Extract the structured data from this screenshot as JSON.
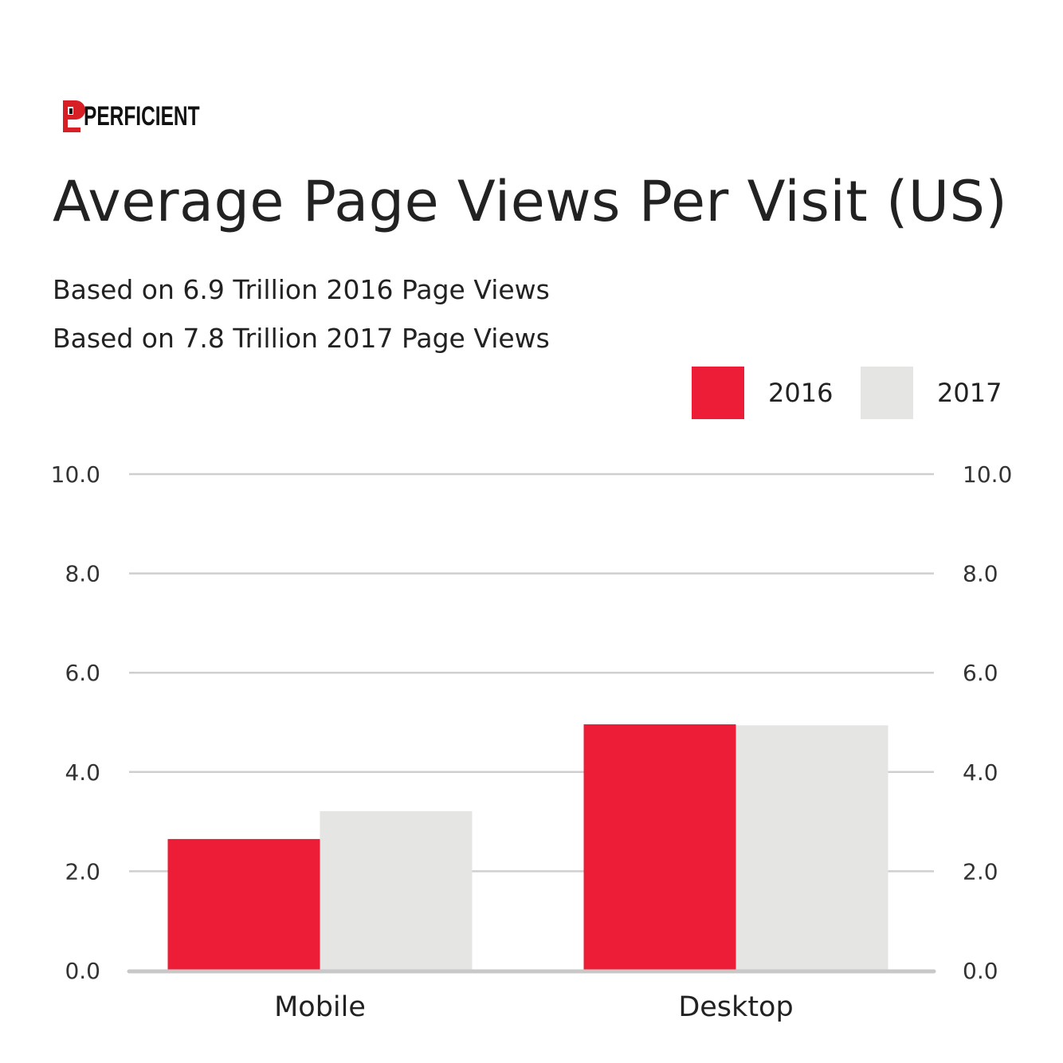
{
  "brand": {
    "name": "PERFICIENT",
    "color": "#d71f26"
  },
  "chart_data": {
    "type": "bar",
    "title": "Average Page Views Per Visit (US)",
    "subtitles": [
      "Based on 6.9 Trillion 2016 Page Views",
      "Based on 7.8 Trillion 2017 Page Views"
    ],
    "categories": [
      "Mobile",
      "Desktop"
    ],
    "series": [
      {
        "name": "2016",
        "color": "#ed1c37",
        "values": [
          2.65,
          4.96
        ]
      },
      {
        "name": "2017",
        "color": "#e5e5e3",
        "values": [
          3.21,
          4.94
        ]
      }
    ],
    "ylim": [
      0,
      10
    ],
    "yticks": [
      "0.0",
      "2.0",
      "4.0",
      "6.0",
      "8.0",
      "10.0"
    ],
    "ytick_values": [
      0,
      2,
      4,
      6,
      8,
      10
    ],
    "grid": true,
    "dual_y_axis_labels": true,
    "legend_position": "top-right",
    "xlabel": "",
    "ylabel": ""
  }
}
